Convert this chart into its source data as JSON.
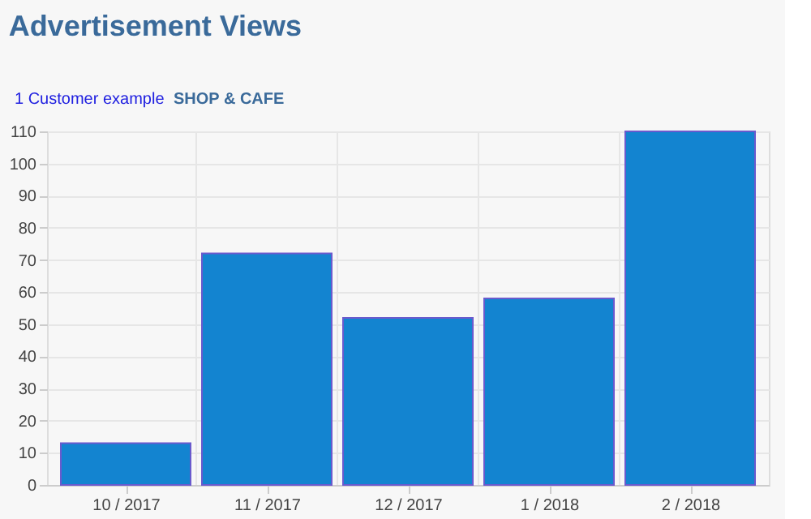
{
  "chart_data": {
    "type": "bar",
    "title": "Advertisement Views",
    "subtitle": "SHOP & CAFE",
    "annotations": [
      "1 Customer example"
    ],
    "categories": [
      "10 / 2017",
      "11 / 2017",
      "12 / 2017",
      "1 / 2018",
      "2 / 2018"
    ],
    "values": [
      13,
      72,
      52,
      58,
      110
    ],
    "color": "#1384d0",
    "ylim": [
      0,
      110
    ],
    "yticks": [
      0,
      10,
      20,
      30,
      40,
      50,
      60,
      70,
      80,
      90,
      100,
      110
    ],
    "grid": true
  }
}
